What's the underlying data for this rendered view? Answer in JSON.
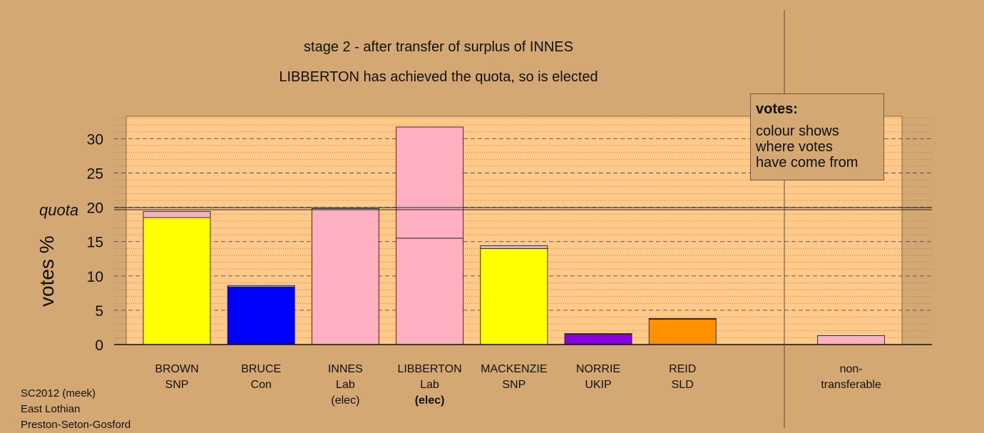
{
  "title_lines": [
    "stage 2 - after transfer of surplus of INNES",
    "LIBBERTON has achieved the quota, so is elected"
  ],
  "legend": {
    "title": "votes:",
    "body": "colour shows\nwhere votes\nhave come from"
  },
  "quota_label": "quota",
  "footer": [
    "SC2012 (meek)",
    "East Lothian",
    "Preston-Seton-Gosford"
  ],
  "colors": {
    "background": "#d4a873",
    "plot_area": "#ffc98a",
    "SNP": "#ffff00",
    "Con": "#0000ff",
    "Lab": "#ffb0c0",
    "UKIP": "#8800dd",
    "SLD": "#ff9000"
  },
  "chart_data": {
    "type": "bar",
    "stacked": true,
    "ylabel": "votes %",
    "ylim": [
      0,
      33
    ],
    "yticks": [
      0,
      5,
      10,
      15,
      20,
      25,
      30
    ],
    "quota": 19.8,
    "grid": true,
    "legend_position": "top-right",
    "categories": [
      {
        "label": [
          "BROWN",
          "SNP"
        ],
        "segments": [
          {
            "value": 18.5,
            "color": "SNP"
          },
          {
            "value": 0.9,
            "color": "Lab"
          }
        ]
      },
      {
        "label": [
          "BRUCE",
          "Con"
        ],
        "segments": [
          {
            "value": 8.4,
            "color": "Con"
          },
          {
            "value": 0.2,
            "color": "Lab"
          }
        ]
      },
      {
        "label": [
          "INNES",
          "Lab",
          "(elec)"
        ],
        "bold_line": -1,
        "segments": [
          {
            "value": 19.8,
            "color": "Lab"
          }
        ]
      },
      {
        "label": [
          "LIBBERTON",
          "Lab",
          "(elec)"
        ],
        "bold_line": 2,
        "segments": [
          {
            "value": 15.5,
            "color": "Lab"
          },
          {
            "value": 16.2,
            "color": "Lab"
          }
        ]
      },
      {
        "label": [
          "MACKENZIE",
          "SNP"
        ],
        "segments": [
          {
            "value": 14.0,
            "color": "SNP"
          },
          {
            "value": 0.4,
            "color": "Lab"
          }
        ]
      },
      {
        "label": [
          "NORRIE",
          "UKIP"
        ],
        "segments": [
          {
            "value": 1.5,
            "color": "UKIP"
          },
          {
            "value": 0.1,
            "color": "Lab"
          }
        ]
      },
      {
        "label": [
          "REID",
          "SLD"
        ],
        "segments": [
          {
            "value": 3.7,
            "color": "SLD"
          },
          {
            "value": 0.1,
            "color": "Lab"
          }
        ]
      },
      {
        "label": [],
        "segments": []
      },
      {
        "label": [
          "non-",
          "transferable"
        ],
        "segments": [
          {
            "value": 1.3,
            "color": "Lab"
          }
        ]
      }
    ]
  }
}
